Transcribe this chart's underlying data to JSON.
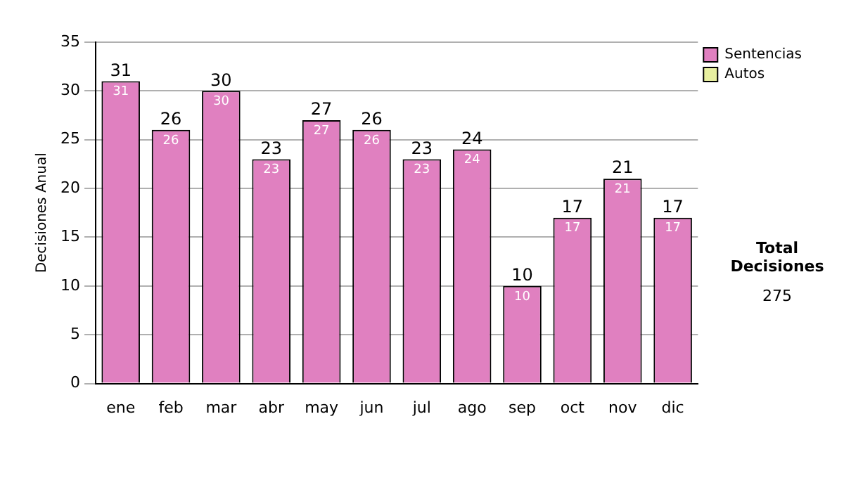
{
  "chart_data": {
    "type": "bar",
    "ylabel": "Decisiones Anual",
    "categories": [
      "ene",
      "feb",
      "mar",
      "abr",
      "may",
      "jun",
      "jul",
      "ago",
      "sep",
      "oct",
      "nov",
      "dic"
    ],
    "series": [
      {
        "name": "Sentencias",
        "color": "#e080c0",
        "values": [
          31,
          26,
          30,
          23,
          27,
          26,
          23,
          24,
          10,
          17,
          21,
          17
        ]
      },
      {
        "name": "Autos",
        "color": "#e8f0a0",
        "values": [
          null,
          null,
          null,
          null,
          null,
          null,
          null,
          null,
          null,
          null,
          null,
          null
        ]
      }
    ],
    "stacked": true,
    "data_labels": true,
    "totals": [
      "31",
      "26",
      "30",
      "23",
      "27",
      "26",
      "23",
      "24",
      "10",
      "17",
      "21",
      "17"
    ],
    "ylim": [
      0,
      35
    ],
    "yticks": [
      0,
      5,
      10,
      15,
      20,
      25,
      30,
      35
    ],
    "grid": "y",
    "legend": "right",
    "annotations": [
      "Total Decisiones",
      "275"
    ]
  }
}
